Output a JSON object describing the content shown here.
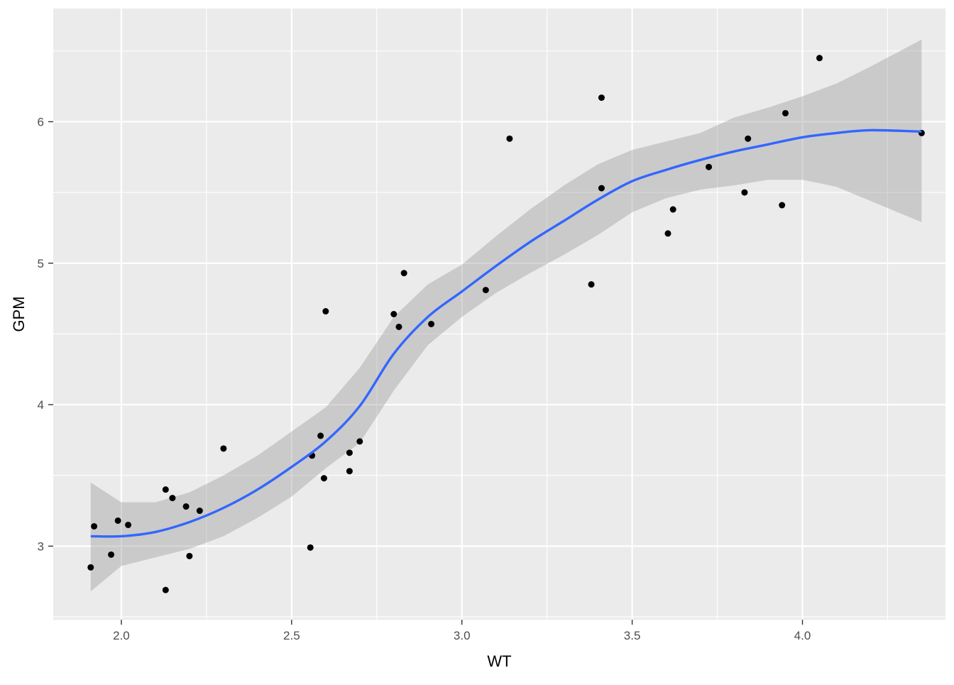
{
  "chart_data": {
    "type": "scatter",
    "xlabel": "WT",
    "ylabel": "GPM",
    "xlim": [
      1.8,
      4.42
    ],
    "ylim": [
      2.48,
      6.8
    ],
    "x_ticks": [
      2.0,
      2.5,
      3.0,
      3.5,
      4.0
    ],
    "x_tick_labels": [
      "2.0",
      "2.5",
      "3.0",
      "3.5",
      "4.0"
    ],
    "y_ticks": [
      3,
      4,
      5,
      6
    ],
    "y_tick_labels": [
      "3",
      "4",
      "5",
      "6"
    ],
    "grid": true,
    "panel_background": "#EBEBEB",
    "grid_color": "#FFFFFF",
    "point_color": "#000000",
    "smooth_line_color": "#3366FF",
    "ribbon_color": "#999999",
    "points": [
      {
        "x": 1.91,
        "y": 2.85
      },
      {
        "x": 1.92,
        "y": 3.14
      },
      {
        "x": 1.97,
        "y": 2.94
      },
      {
        "x": 1.99,
        "y": 3.18
      },
      {
        "x": 2.02,
        "y": 3.15
      },
      {
        "x": 2.13,
        "y": 2.69
      },
      {
        "x": 2.13,
        "y": 3.4
      },
      {
        "x": 2.15,
        "y": 3.34
      },
      {
        "x": 2.19,
        "y": 3.28
      },
      {
        "x": 2.2,
        "y": 2.93
      },
      {
        "x": 2.23,
        "y": 3.25
      },
      {
        "x": 2.3,
        "y": 3.69
      },
      {
        "x": 2.555,
        "y": 2.99
      },
      {
        "x": 2.56,
        "y": 3.64
      },
      {
        "x": 2.585,
        "y": 3.78
      },
      {
        "x": 2.595,
        "y": 3.48
      },
      {
        "x": 2.6,
        "y": 4.66
      },
      {
        "x": 2.67,
        "y": 3.66
      },
      {
        "x": 2.67,
        "y": 3.53
      },
      {
        "x": 2.7,
        "y": 3.74
      },
      {
        "x": 2.8,
        "y": 4.64
      },
      {
        "x": 2.815,
        "y": 4.55
      },
      {
        "x": 2.83,
        "y": 4.93
      },
      {
        "x": 2.91,
        "y": 4.57
      },
      {
        "x": 3.07,
        "y": 4.81
      },
      {
        "x": 3.14,
        "y": 5.88
      },
      {
        "x": 3.38,
        "y": 4.85
      },
      {
        "x": 3.41,
        "y": 6.17
      },
      {
        "x": 3.41,
        "y": 5.53
      },
      {
        "x": 3.605,
        "y": 5.21
      },
      {
        "x": 3.62,
        "y": 5.38
      },
      {
        "x": 3.725,
        "y": 5.68
      },
      {
        "x": 3.83,
        "y": 5.5
      },
      {
        "x": 3.84,
        "y": 5.88
      },
      {
        "x": 3.94,
        "y": 5.41
      },
      {
        "x": 3.95,
        "y": 6.06
      },
      {
        "x": 4.05,
        "y": 6.45
      },
      {
        "x": 4.35,
        "y": 5.92
      }
    ],
    "smooth_x": [
      1.91,
      2.0,
      2.1,
      2.2,
      2.3,
      2.4,
      2.5,
      2.6,
      2.7,
      2.8,
      2.9,
      3.0,
      3.1,
      3.2,
      3.3,
      3.4,
      3.5,
      3.6,
      3.7,
      3.8,
      3.9,
      4.0,
      4.1,
      4.2,
      4.35
    ],
    "smooth_y": [
      3.07,
      3.07,
      3.1,
      3.17,
      3.27,
      3.4,
      3.56,
      3.74,
      3.99,
      4.36,
      4.62,
      4.8,
      4.98,
      5.15,
      5.3,
      5.45,
      5.58,
      5.66,
      5.73,
      5.79,
      5.84,
      5.89,
      5.92,
      5.94,
      5.93
    ],
    "smooth_lower": [
      2.68,
      2.86,
      2.92,
      2.98,
      3.07,
      3.2,
      3.35,
      3.55,
      3.73,
      4.1,
      4.42,
      4.62,
      4.79,
      4.93,
      5.06,
      5.2,
      5.36,
      5.46,
      5.52,
      5.55,
      5.59,
      5.59,
      5.54,
      5.44,
      5.29
    ],
    "smooth_upper": [
      3.45,
      3.31,
      3.31,
      3.38,
      3.5,
      3.64,
      3.81,
      3.98,
      4.26,
      4.62,
      4.85,
      4.99,
      5.19,
      5.38,
      5.55,
      5.7,
      5.8,
      5.86,
      5.92,
      6.03,
      6.1,
      6.18,
      6.27,
      6.39,
      6.58
    ]
  }
}
